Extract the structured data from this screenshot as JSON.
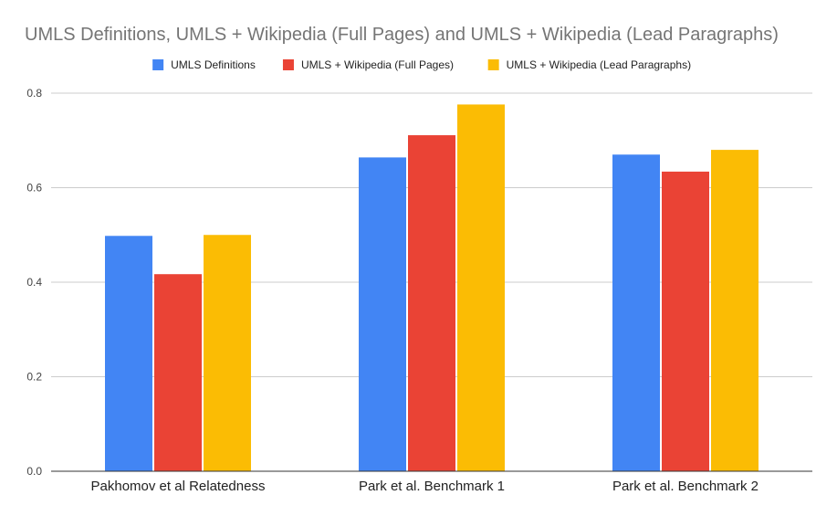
{
  "chart_data": {
    "type": "bar",
    "title": "UMLS Definitions, UMLS + Wikipedia (Full Pages) and UMLS + Wikipedia (Lead Paragraphs)",
    "xlabel": "",
    "ylabel": "",
    "categories": [
      "Pakhomov et al Relatedness",
      "Park et al. Benchmark 1",
      "Park et al. Benchmark 2"
    ],
    "series": [
      {
        "name": "UMLS Definitions",
        "color": "#4285f4",
        "values": [
          0.498,
          0.664,
          0.67
        ]
      },
      {
        "name": "UMLS + Wikipedia (Full Pages)",
        "color": "#ea4335",
        "values": [
          0.417,
          0.711,
          0.634
        ]
      },
      {
        "name": "UMLS + Wikipedia (Lead Paragraphs)",
        "color": "#fbbc04",
        "values": [
          0.5,
          0.776,
          0.68
        ]
      }
    ],
    "ylim": [
      0,
      0.8
    ],
    "yticks": [
      "0.0",
      "0.2",
      "0.4",
      "0.6",
      "0.8"
    ],
    "ytick_values": [
      0,
      0.2,
      0.4,
      0.6,
      0.8
    ],
    "grid": true,
    "legend_position": "top"
  }
}
